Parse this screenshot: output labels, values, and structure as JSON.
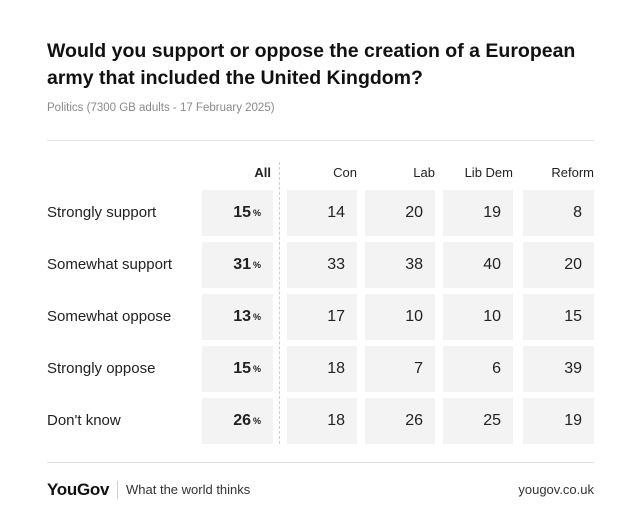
{
  "header": {
    "title": "Would you support or oppose the creation of a European army that included the United Kingdom?",
    "subtitle": "Politics (7300 GB adults - 17 February 2025)"
  },
  "chart_data": {
    "type": "table",
    "title": "Would you support or oppose the creation of a European army that included the United Kingdom?",
    "columns": [
      "All",
      "Con",
      "Lab",
      "Lib Dem",
      "Reform"
    ],
    "unit": "%",
    "rows": [
      {
        "label": "Strongly support",
        "values": [
          15,
          14,
          20,
          19,
          8
        ]
      },
      {
        "label": "Somewhat support",
        "values": [
          31,
          33,
          38,
          40,
          20
        ]
      },
      {
        "label": "Somewhat oppose",
        "values": [
          13,
          17,
          10,
          10,
          15
        ]
      },
      {
        "label": "Strongly oppose",
        "values": [
          15,
          18,
          7,
          6,
          39
        ]
      },
      {
        "label": "Don't know",
        "values": [
          26,
          18,
          26,
          25,
          19
        ]
      }
    ]
  },
  "footer": {
    "logo": "YouGov",
    "tagline": "What the world thinks",
    "url": "yougov.co.uk"
  }
}
